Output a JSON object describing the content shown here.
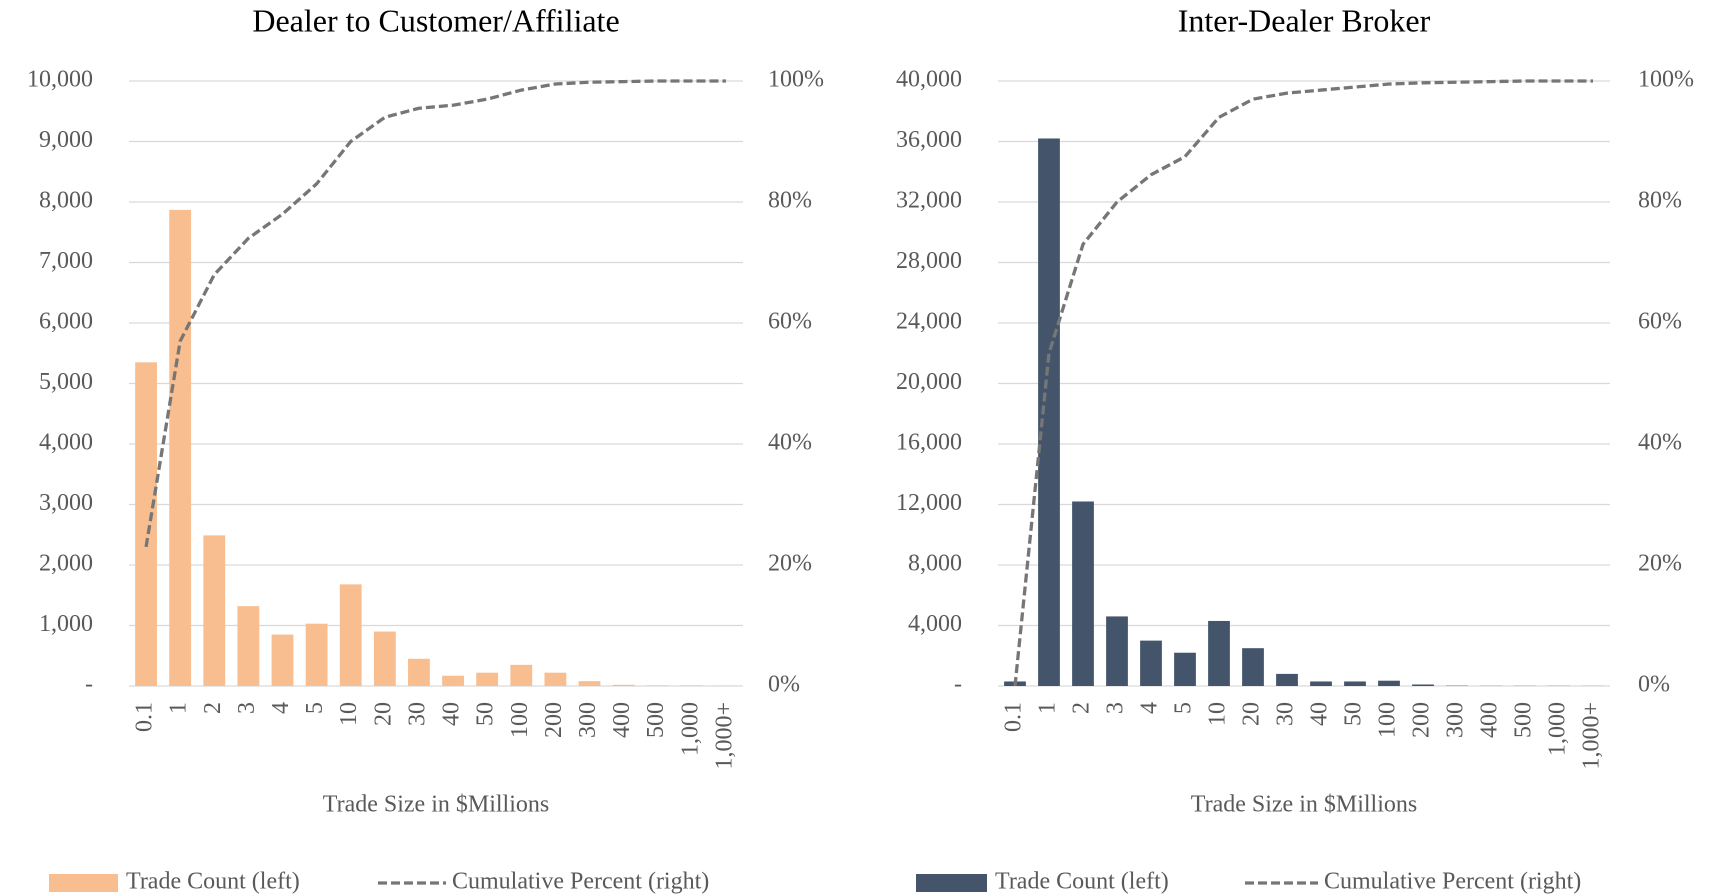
{
  "chart_data": [
    {
      "type": "bar",
      "title": "Dealer to Customer/Affiliate",
      "x_label": "Trade Size in $Millions",
      "categories": [
        "0.1",
        "1",
        "2",
        "3",
        "4",
        "5",
        "10",
        "20",
        "30",
        "40",
        "50",
        "100",
        "200",
        "300",
        "400",
        "500",
        "1,000",
        "1,000+"
      ],
      "series": [
        {
          "name": "Trade Count (left)",
          "type": "bar",
          "color": "#f9be8f",
          "values": [
            5350,
            7870,
            2490,
            1320,
            850,
            1030,
            1680,
            900,
            450,
            170,
            220,
            350,
            220,
            80,
            20,
            10,
            10,
            5
          ]
        },
        {
          "name": "Cumulative Percent (right)",
          "type": "line",
          "axis": "y2",
          "color": "#767676",
          "dashed": true,
          "values": [
            23,
            57,
            68,
            74,
            78,
            83,
            90,
            94,
            95.5,
            96,
            97,
            98.5,
            99.5,
            99.8,
            99.9,
            100,
            100,
            100
          ]
        }
      ],
      "ylim": [
        0,
        10000
      ],
      "yticks": [
        {
          "value": 0,
          "label": "-"
        },
        {
          "value": 1000,
          "label": "1,000"
        },
        {
          "value": 2000,
          "label": "2,000"
        },
        {
          "value": 3000,
          "label": "3,000"
        },
        {
          "value": 4000,
          "label": "4,000"
        },
        {
          "value": 5000,
          "label": "5,000"
        },
        {
          "value": 6000,
          "label": "6,000"
        },
        {
          "value": 7000,
          "label": "7,000"
        },
        {
          "value": 8000,
          "label": "8,000"
        },
        {
          "value": 9000,
          "label": "9,000"
        },
        {
          "value": 10000,
          "label": "10,000"
        }
      ],
      "y2lim": [
        0,
        100
      ],
      "y2ticks": [
        {
          "value": 0,
          "label": "0%"
        },
        {
          "value": 20,
          "label": "20%"
        },
        {
          "value": 40,
          "label": "40%"
        },
        {
          "value": 60,
          "label": "60%"
        },
        {
          "value": 80,
          "label": "80%"
        },
        {
          "value": 100,
          "label": "100%"
        }
      ],
      "grid": true,
      "legend": "bottom"
    },
    {
      "type": "bar",
      "title": "Inter-Dealer Broker",
      "x_label": "Trade Size in $Millions",
      "categories": [
        "0.1",
        "1",
        "2",
        "3",
        "4",
        "5",
        "10",
        "20",
        "30",
        "40",
        "50",
        "100",
        "200",
        "300",
        "400",
        "500",
        "1,000",
        "1,000+"
      ],
      "series": [
        {
          "name": "Trade Count (left)",
          "type": "bar",
          "color": "#44546a",
          "values": [
            300,
            36200,
            12200,
            4600,
            3000,
            2200,
            4300,
            2500,
            800,
            300,
            300,
            350,
            100,
            20,
            10,
            10,
            10,
            5
          ]
        },
        {
          "name": "Cumulative Percent (right)",
          "type": "line",
          "axis": "y2",
          "color": "#767676",
          "dashed": true,
          "values": [
            0,
            55,
            73,
            80,
            84.5,
            87.5,
            94,
            97,
            98,
            98.5,
            99,
            99.5,
            99.7,
            99.8,
            99.9,
            100,
            100,
            100
          ]
        }
      ],
      "ylim": [
        0,
        40000
      ],
      "yticks": [
        {
          "value": 0,
          "label": "-"
        },
        {
          "value": 4000,
          "label": "4,000"
        },
        {
          "value": 8000,
          "label": "8,000"
        },
        {
          "value": 12000,
          "label": "12,000"
        },
        {
          "value": 16000,
          "label": "16,000"
        },
        {
          "value": 20000,
          "label": "20,000"
        },
        {
          "value": 24000,
          "label": "24,000"
        },
        {
          "value": 28000,
          "label": "28,000"
        },
        {
          "value": 32000,
          "label": "32,000"
        },
        {
          "value": 36000,
          "label": "36,000"
        },
        {
          "value": 40000,
          "label": "40,000"
        }
      ],
      "y2lim": [
        0,
        100
      ],
      "y2ticks": [
        {
          "value": 0,
          "label": "0%"
        },
        {
          "value": 20,
          "label": "20%"
        },
        {
          "value": 40,
          "label": "40%"
        },
        {
          "value": 60,
          "label": "60%"
        },
        {
          "value": 80,
          "label": "80%"
        },
        {
          "value": 100,
          "label": "100%"
        }
      ],
      "grid": true,
      "legend": "bottom"
    }
  ]
}
